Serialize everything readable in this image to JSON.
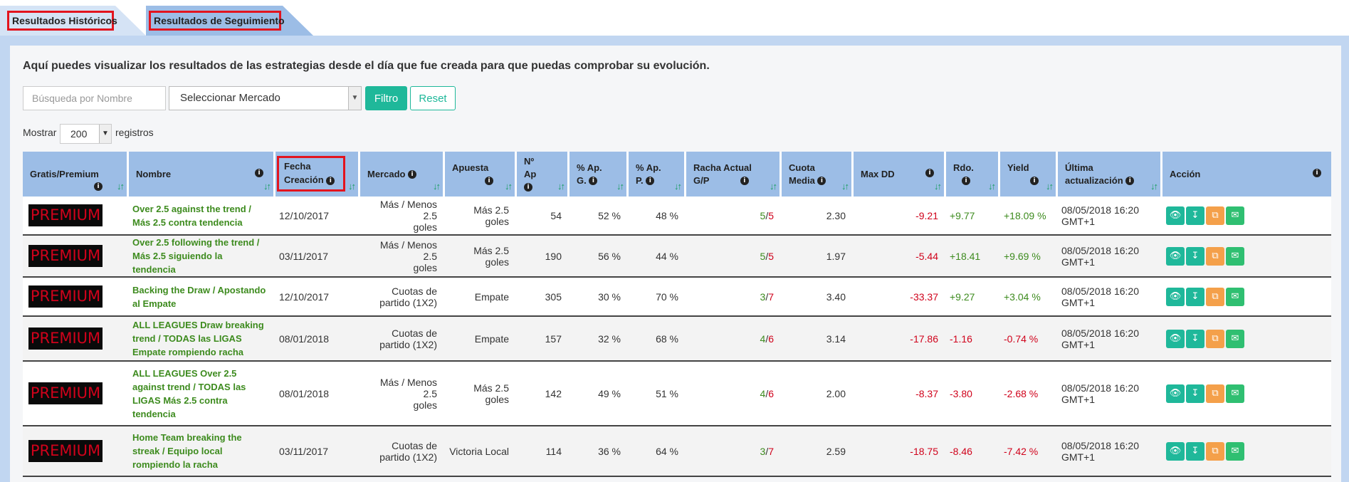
{
  "tabs": {
    "historicos": "Resultados Históricos",
    "seguimiento": "Resultados de Seguimiento"
  },
  "intro": "Aquí puedes visualizar los resultados de las estrategias desde el día que fue creada para que puedas comprobar su evolución.",
  "filters": {
    "search_placeholder": "Búsqueda por Nombre",
    "market_select": "Seleccionar Mercado",
    "filter_label": "Filtro",
    "reset_label": "Reset"
  },
  "length": {
    "show_label": "Mostrar",
    "value": "200",
    "records_label": "registros"
  },
  "columns": {
    "tipo": "Gratis/Premium",
    "nombre": "Nombre",
    "fecha_l1": "Fecha",
    "fecha_l2": "Creación",
    "mercado": "Mercado",
    "apuesta": "Apuesta",
    "nap_l1": "Nº",
    "nap_l2": "Ap",
    "apg_l1": "% Ap.",
    "apg_l2": "G.",
    "app_l1": "% Ap.",
    "app_l2": "P.",
    "racha_l1": "Racha Actual",
    "racha_l2": "G/P",
    "cuota_l1": "Cuota",
    "cuota_l2": "Media",
    "maxdd": "Max DD",
    "rdo": "Rdo.",
    "yield": "Yield",
    "ultima_l1": "Última",
    "ultima_l2": "actualización",
    "accion": "Acción"
  },
  "badge": "PREMIUM",
  "rows": [
    {
      "n1": "Over 2.5 against the trend /",
      "n2": "Más 2.5 contra tendencia",
      "n3": "",
      "n4": "",
      "fecha": "12/10/2017",
      "m1": "Más / Menos 2.5",
      "m2": "goles",
      "apuesta": "Más 2.5 goles",
      "nap": "54",
      "apg": "52 %",
      "app": "48 %",
      "rg": "5",
      "rp": "5",
      "cuota": "2.30",
      "maxdd": "-9.21",
      "rdo": "+9.77",
      "yield": "+18.09 %",
      "u1": "08/05/2018 16:20",
      "u2": "GMT+1"
    },
    {
      "n1": "Over 2.5 following the trend /",
      "n2": "Más 2.5 siguiendo la tendencia",
      "n3": "",
      "n4": "",
      "fecha": "03/11/2017",
      "m1": "Más / Menos 2.5",
      "m2": "goles",
      "apuesta": "Más 2.5 goles",
      "nap": "190",
      "apg": "56 %",
      "app": "44 %",
      "rg": "5",
      "rp": "5",
      "cuota": "1.97",
      "maxdd": "-5.44",
      "rdo": "+18.41",
      "yield": "+9.69 %",
      "u1": "08/05/2018 16:20",
      "u2": "GMT+1"
    },
    {
      "n1": "Backing the Draw / Apostando",
      "n2": "al Empate",
      "n3": "",
      "n4": "",
      "fecha": "12/10/2017",
      "m1": "Cuotas de",
      "m2": "partido (1X2)",
      "apuesta": "Empate",
      "nap": "305",
      "apg": "30 %",
      "app": "70 %",
      "rg": "3",
      "rp": "7",
      "cuota": "3.40",
      "maxdd": "-33.37",
      "rdo": "+9.27",
      "yield": "+3.04 %",
      "u1": "08/05/2018 16:20",
      "u2": "GMT+1"
    },
    {
      "n1": "ALL LEAGUES Draw breaking",
      "n2": "trend / TODAS las LIGAS",
      "n3": "Empate rompiendo racha",
      "n4": "",
      "fecha": "08/01/2018",
      "m1": "Cuotas de",
      "m2": "partido (1X2)",
      "apuesta": "Empate",
      "nap": "157",
      "apg": "32 %",
      "app": "68 %",
      "rg": "4",
      "rp": "6",
      "cuota": "3.14",
      "maxdd": "-17.86",
      "rdo": "-1.16",
      "yield": "-0.74 %",
      "u1": "08/05/2018 16:20",
      "u2": "GMT+1"
    },
    {
      "n1": "ALL LEAGUES Over 2.5",
      "n2": "against trend / TODAS las",
      "n3": "LIGAS Más 2.5 contra",
      "n4": "tendencia",
      "fecha": "08/01/2018",
      "m1": "Más / Menos 2.5",
      "m2": "goles",
      "apuesta": "Más 2.5 goles",
      "nap": "142",
      "apg": "49 %",
      "app": "51 %",
      "rg": "4",
      "rp": "6",
      "cuota": "2.00",
      "maxdd": "-8.37",
      "rdo": "-3.80",
      "yield": "-2.68 %",
      "u1": "08/05/2018 16:20",
      "u2": "GMT+1"
    },
    {
      "n1": "Home Team breaking the",
      "n2": "streak / Equipo local",
      "n3": "rompiendo la racha",
      "n4": "",
      "fecha": "03/11/2017",
      "m1": "Cuotas de",
      "m2": "partido (1X2)",
      "apuesta": "Victoria Local",
      "nap": "114",
      "apg": "36 %",
      "app": "64 %",
      "rg": "3",
      "rp": "7",
      "cuota": "2.59",
      "maxdd": "-18.75",
      "rdo": "-8.46",
      "yield": "-7.42 %",
      "u1": "08/05/2018 16:20",
      "u2": "GMT+1"
    }
  ]
}
